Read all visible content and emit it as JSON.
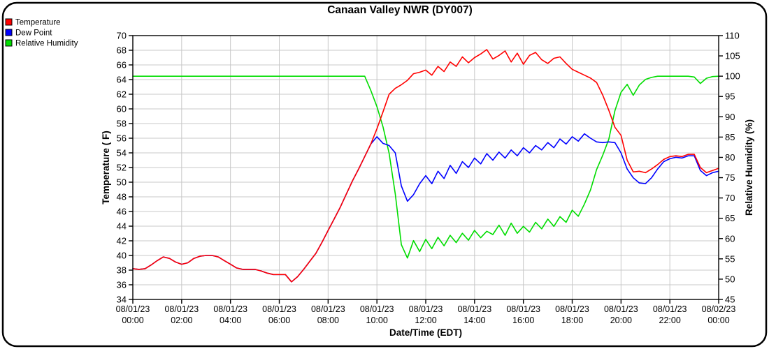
{
  "window": {
    "title": "Canaan Valley NWR (DY007)"
  },
  "colors": {
    "temperature": "#ff0000",
    "dew_point": "#0000ff",
    "relative_humidity": "#00dd00",
    "grid": "#c8c8c8",
    "axis": "#000000",
    "background": "#ffffff"
  },
  "chart_data": {
    "type": "line",
    "title": "Canaan Valley NWR (DY007)",
    "xlabel": "Date/Time (EDT)",
    "grid": true,
    "left_axis": {
      "label": "Temperature ( F)",
      "min": 34,
      "max": 70,
      "tick_step": 2
    },
    "right_axis": {
      "label": "Relative Humidity (%)",
      "min": 45,
      "max": 110,
      "tick_step": 5
    },
    "x_axis": {
      "min_hours": 0,
      "max_hours": 24,
      "tick_step_hours": 2,
      "tick_labels": [
        {
          "date": "08/01/23",
          "time": "00:00"
        },
        {
          "date": "08/01/23",
          "time": "02:00"
        },
        {
          "date": "08/01/23",
          "time": "04:00"
        },
        {
          "date": "08/01/23",
          "time": "06:00"
        },
        {
          "date": "08/01/23",
          "time": "08:00"
        },
        {
          "date": "08/01/23",
          "time": "10:00"
        },
        {
          "date": "08/01/23",
          "time": "12:00"
        },
        {
          "date": "08/01/23",
          "time": "14:00"
        },
        {
          "date": "08/01/23",
          "time": "16:00"
        },
        {
          "date": "08/01/23",
          "time": "18:00"
        },
        {
          "date": "08/01/23",
          "time": "20:00"
        },
        {
          "date": "08/01/23",
          "time": "22:00"
        },
        {
          "date": "08/02/23",
          "time": "00:00"
        }
      ]
    },
    "legend": {
      "position": "top-left",
      "entries": [
        {
          "label": "Temperature",
          "color": "#ff0000"
        },
        {
          "label": "Dew Point",
          "color": "#0000ff"
        },
        {
          "label": "Relative Humidity",
          "color": "#00dd00"
        }
      ]
    },
    "series": [
      {
        "name": "Relative Humidity",
        "axis": "right",
        "color": "#00dd00",
        "x_start_hours": 0,
        "x_step_hours": 0.25,
        "values": [
          100,
          100,
          100,
          100,
          100,
          100,
          100,
          100,
          100,
          100,
          100,
          100,
          100,
          100,
          100,
          100,
          100,
          100,
          100,
          100,
          100,
          100,
          100,
          100,
          100,
          100,
          100,
          100,
          100,
          100,
          100,
          100,
          100,
          100,
          100,
          100,
          100,
          100,
          100,
          96.5,
          92.5,
          87.5,
          81.0,
          71.0,
          58.5,
          55.2,
          59.5,
          56.8,
          59.8,
          57.5,
          60.3,
          58.2,
          60.8,
          59.0,
          61.3,
          59.6,
          62.0,
          60.2,
          61.8,
          61.0,
          63.3,
          60.8,
          63.8,
          61.3,
          63.0,
          61.6,
          64.0,
          62.4,
          64.8,
          63.0,
          65.4,
          64.0,
          67.0,
          65.5,
          68.5,
          72.0,
          77.0,
          80.5,
          84.5,
          91.5,
          96.0,
          98.0,
          95.3,
          97.8,
          99.2,
          99.7,
          100,
          100,
          100,
          100,
          100,
          100,
          99.8,
          98.2,
          99.5,
          99.9,
          100
        ]
      },
      {
        "name": "Dew Point",
        "axis": "left",
        "color": "#0000ff",
        "x_start_hours": 0,
        "x_step_hours": 0.25,
        "values": [
          38.2,
          38.1,
          38.2,
          38.7,
          39.3,
          39.8,
          39.6,
          39.1,
          38.8,
          39.0,
          39.6,
          39.9,
          40.0,
          40.0,
          39.8,
          39.3,
          38.8,
          38.3,
          38.1,
          38.1,
          38.1,
          37.9,
          37.6,
          37.4,
          37.4,
          37.4,
          36.4,
          37.1,
          38.1,
          39.2,
          40.3,
          41.8,
          43.4,
          45.0,
          46.6,
          48.4,
          50.2,
          51.8,
          53.5,
          55.2,
          56.2,
          55.3,
          55.0,
          54.0,
          49.5,
          47.4,
          48.3,
          49.8,
          50.9,
          49.8,
          51.5,
          50.5,
          52.3,
          51.2,
          52.8,
          52.0,
          53.3,
          52.5,
          53.9,
          53.0,
          54.1,
          53.3,
          54.4,
          53.6,
          54.7,
          54.0,
          55.0,
          54.4,
          55.4,
          54.7,
          55.9,
          55.2,
          56.2,
          55.6,
          56.6,
          56.0,
          55.5,
          55.4,
          55.5,
          55.4,
          54.0,
          51.8,
          50.6,
          49.9,
          49.8,
          50.6,
          51.8,
          52.8,
          53.2,
          53.4,
          53.3,
          53.6,
          53.6,
          51.6,
          50.9,
          51.3,
          51.5
        ]
      },
      {
        "name": "Temperature",
        "axis": "left",
        "color": "#ff0000",
        "x_start_hours": 0,
        "x_step_hours": 0.25,
        "values": [
          38.2,
          38.1,
          38.2,
          38.7,
          39.3,
          39.8,
          39.6,
          39.1,
          38.8,
          39.0,
          39.6,
          39.9,
          40.0,
          40.0,
          39.8,
          39.3,
          38.8,
          38.3,
          38.1,
          38.1,
          38.1,
          37.9,
          37.6,
          37.4,
          37.4,
          37.4,
          36.4,
          37.1,
          38.1,
          39.2,
          40.3,
          41.8,
          43.4,
          45.0,
          46.6,
          48.4,
          50.2,
          51.8,
          53.5,
          55.2,
          57.3,
          59.6,
          62.0,
          62.8,
          63.3,
          63.9,
          64.8,
          65.0,
          65.3,
          64.6,
          65.8,
          65.1,
          66.4,
          65.8,
          67.1,
          66.3,
          67.0,
          67.5,
          68.1,
          66.8,
          67.3,
          67.9,
          66.4,
          67.6,
          66.1,
          67.3,
          67.7,
          66.7,
          66.2,
          66.9,
          67.1,
          66.2,
          65.4,
          65.0,
          64.6,
          64.2,
          63.6,
          61.9,
          59.8,
          57.5,
          56.4,
          53.0,
          51.4,
          51.5,
          51.3,
          51.8,
          52.4,
          53.1,
          53.5,
          53.6,
          53.5,
          53.8,
          53.8,
          52.0,
          51.3,
          51.6,
          51.9
        ]
      }
    ]
  }
}
